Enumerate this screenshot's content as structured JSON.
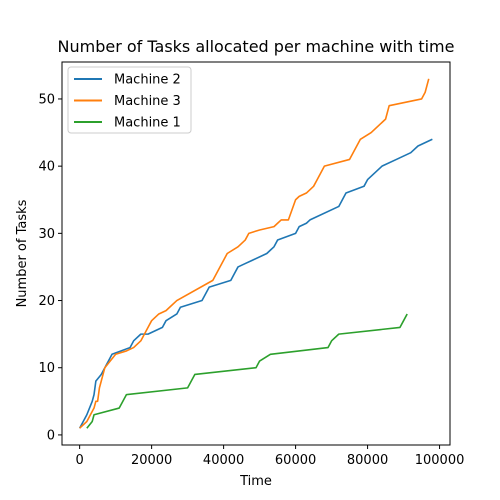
{
  "chart_data": {
    "type": "line",
    "title": "Number of Tasks allocated per machine with time",
    "xlabel": "Time",
    "ylabel": "Number of Tasks",
    "xlim": [
      -4900,
      102900
    ],
    "ylim": [
      -1.5,
      55.5
    ],
    "xticks": [
      0,
      20000,
      40000,
      60000,
      80000,
      100000
    ],
    "xtick_labels": [
      "0",
      "20000",
      "40000",
      "60000",
      "80000",
      "100000"
    ],
    "yticks": [
      0,
      10,
      20,
      30,
      40,
      50
    ],
    "ytick_labels": [
      "0",
      "10",
      "20",
      "30",
      "40",
      "50"
    ],
    "grid": false,
    "legend_position": "upper-left",
    "series": [
      {
        "name": "Machine 2",
        "color": "#1f77b4",
        "x": [
          0,
          2000,
          3500,
          4000,
          4500,
          6000,
          9000,
          14000,
          15000,
          17000,
          19000,
          23000,
          24000,
          27000,
          28000,
          34000,
          36000,
          42000,
          43000,
          44000,
          46000,
          48000,
          52000,
          53000,
          54000,
          55000,
          60000,
          61000,
          63000,
          64000,
          72000,
          73000,
          74000,
          79000,
          80000,
          84000,
          88000,
          92000,
          94000,
          98000
        ],
        "y": [
          1,
          3,
          5,
          6,
          8,
          9,
          12,
          13,
          14,
          15,
          15,
          16,
          17,
          18,
          19,
          20,
          22,
          23,
          24,
          25,
          25.5,
          26,
          27,
          27.5,
          28,
          29,
          30,
          31,
          31.5,
          32,
          34,
          35,
          36,
          37,
          38,
          40,
          41,
          42,
          43,
          44
        ]
      },
      {
        "name": "Machine 3",
        "color": "#ff7f0e",
        "x": [
          0,
          2000,
          3000,
          4000,
          4500,
          5000,
          5500,
          7000,
          10000,
          13000,
          15000,
          17000,
          19000,
          20000,
          22000,
          24000,
          25000,
          27000,
          37000,
          41000,
          44000,
          46000,
          47000,
          50000,
          54000,
          55000,
          56000,
          58000,
          60000,
          61000,
          63000,
          64000,
          65000,
          66000,
          68000,
          75000,
          78000,
          81000,
          85000,
          86000,
          95000,
          96000,
          97000
        ],
        "y": [
          1,
          2,
          3,
          4,
          5,
          5,
          7,
          10,
          12,
          12.5,
          13,
          14,
          16,
          17,
          18,
          18.5,
          19,
          20,
          23,
          27,
          28,
          29,
          30,
          30.5,
          31,
          31.5,
          32,
          32,
          35,
          35.5,
          36,
          36.5,
          37,
          38,
          40,
          41,
          44,
          45,
          47,
          49,
          50,
          51,
          53
        ]
      },
      {
        "name": "Machine 1",
        "color": "#2ca02c",
        "x": [
          2000,
          3500,
          4000,
          11000,
          13000,
          30000,
          32000,
          49000,
          50000,
          53000,
          69000,
          70000,
          72000,
          89000,
          90000,
          91000
        ],
        "y": [
          1,
          2,
          3,
          4,
          6,
          7,
          9,
          10,
          11,
          12,
          13,
          14,
          15,
          16,
          17,
          18
        ]
      }
    ]
  }
}
